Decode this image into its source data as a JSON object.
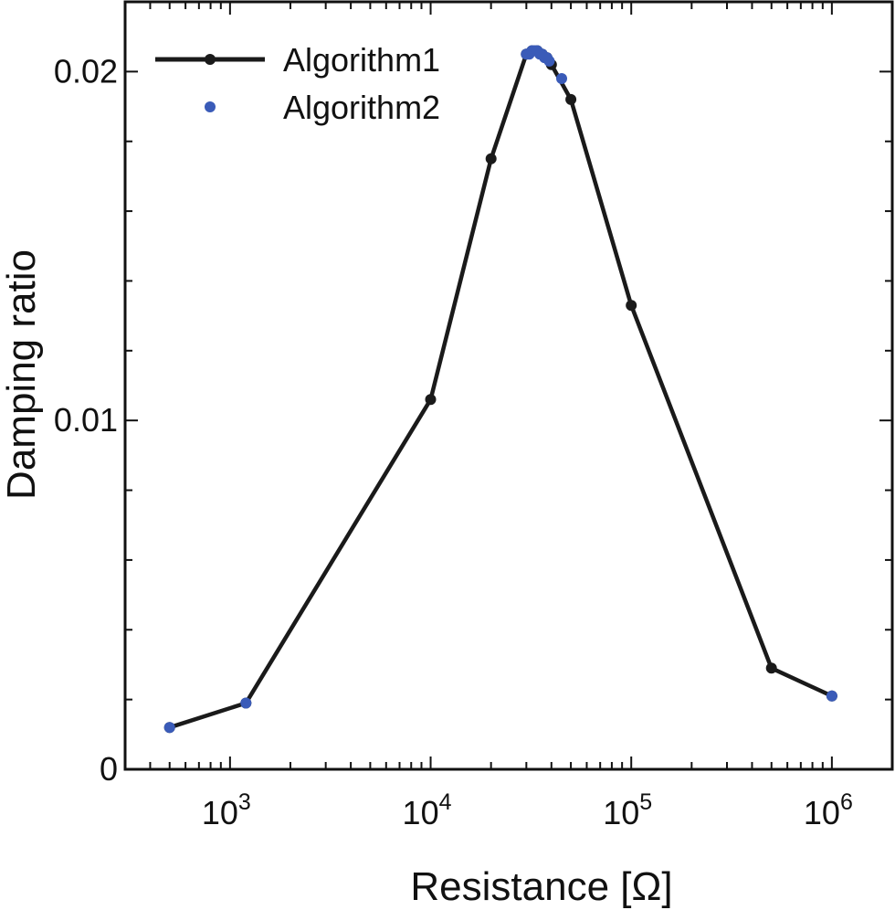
{
  "chart_data": {
    "type": "line",
    "title": "",
    "xlabel": "Resistance [Ω]",
    "ylabel": "Damping ratio",
    "xscale": "log",
    "xlim": [
      300,
      2000000
    ],
    "ylim": [
      0,
      0.022
    ],
    "x_ticks": [
      {
        "value": 1000,
        "mantissa": "10",
        "exponent": "3"
      },
      {
        "value": 10000,
        "mantissa": "10",
        "exponent": "4"
      },
      {
        "value": 100000,
        "mantissa": "10",
        "exponent": "5"
      },
      {
        "value": 1000000,
        "mantissa": "10",
        "exponent": "6"
      }
    ],
    "y_ticks": [
      {
        "value": 0,
        "label": "0"
      },
      {
        "value": 0.01,
        "label": "0.01"
      },
      {
        "value": 0.02,
        "label": "0.02"
      }
    ],
    "y_minor_step": 0.002,
    "legend_position": "top-left",
    "series": [
      {
        "name": "Algorithm1",
        "style": "line-markers",
        "color": "#1a1a1a",
        "x": [
          500,
          1200,
          10000,
          20000,
          30000,
          32000,
          34000,
          36000,
          38000,
          40000,
          50000,
          100000,
          500000,
          1000000
        ],
        "y": [
          0.0012,
          0.0019,
          0.0106,
          0.0175,
          0.0205,
          0.0206,
          0.0206,
          0.0205,
          0.0204,
          0.0202,
          0.0192,
          0.0133,
          0.0029,
          0.0021
        ]
      },
      {
        "name": "Algorithm2",
        "style": "markers",
        "color": "#3a5bb8",
        "x": [
          500,
          1200,
          30000,
          31000,
          32000,
          33000,
          34000,
          35000,
          36000,
          37000,
          38000,
          39000,
          45000,
          1000000
        ],
        "y": [
          0.0012,
          0.0019,
          0.0205,
          0.0205,
          0.0206,
          0.0206,
          0.0206,
          0.0205,
          0.0205,
          0.0204,
          0.0204,
          0.0203,
          0.0198,
          0.0021
        ]
      }
    ]
  }
}
